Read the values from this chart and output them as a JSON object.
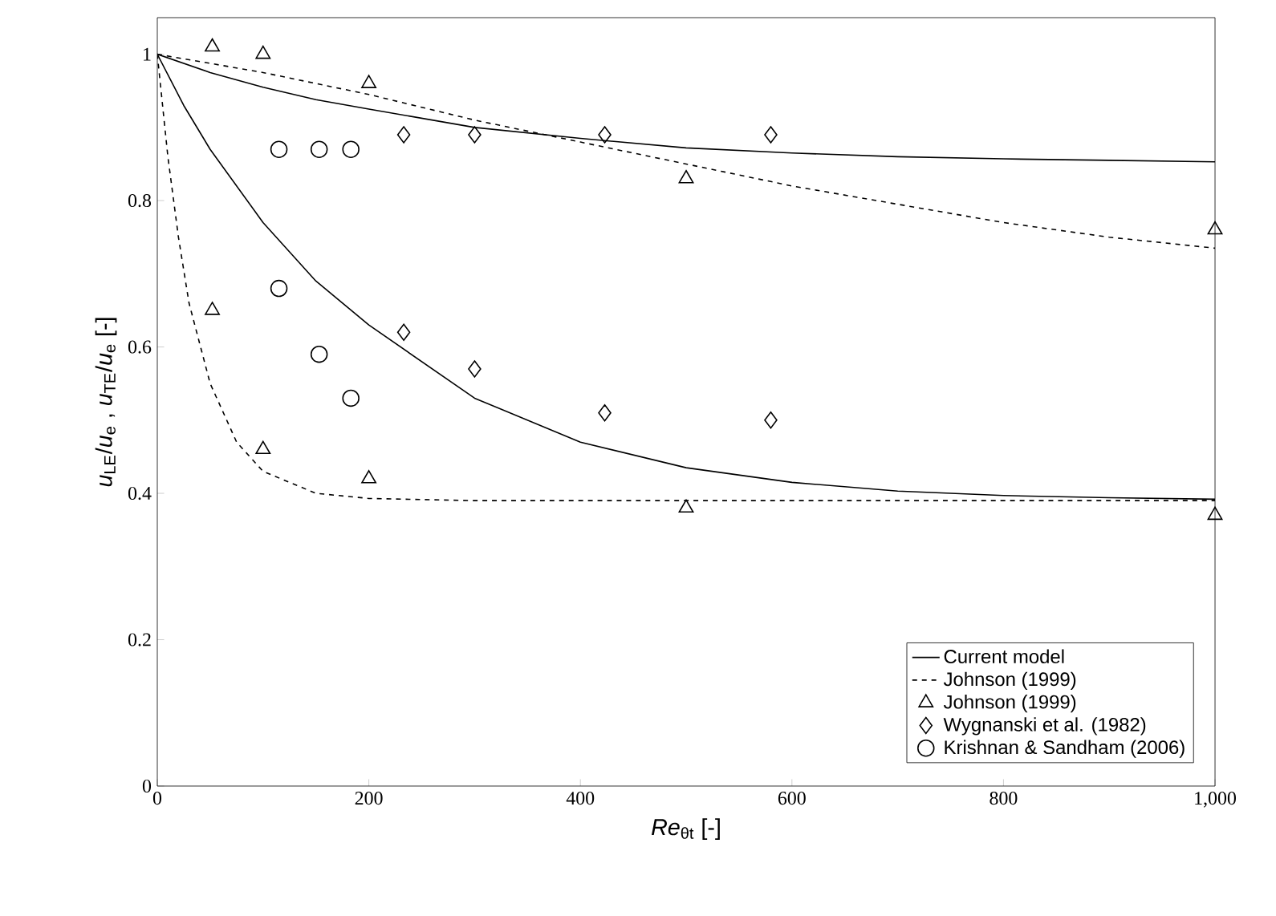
{
  "chart_data": {
    "type": "line",
    "xlabel": "*Re*$_{θt}$ [-]",
    "ylabel": "*u*$_{LE}$/*u*$_{e}$ , *u*$_{TE}$/*u*$_{e}$ [-]",
    "xlim": [
      0,
      1000
    ],
    "ylim": [
      0,
      1.05
    ],
    "xticks": [
      0,
      200,
      400,
      600,
      800,
      {
        "value": 1000,
        "label": "1,000"
      }
    ],
    "yticks": [
      0,
      0.2,
      0.4,
      0.6,
      0.8,
      1
    ],
    "legend": "bottom right",
    "series": [
      {
        "name": "Current model",
        "color": "#000000",
        "line_style": "solid",
        "marker": "none",
        "x": [
          0,
          50,
          100,
          150,
          200,
          300,
          400,
          500,
          600,
          700,
          800,
          900,
          1000
        ],
        "values": [
          1,
          0.975,
          0.955,
          0.938,
          0.925,
          0.9,
          0.885,
          0.872,
          0.865,
          0.86,
          0.857,
          0.855,
          0.853
        ]
      },
      {
        "color": "#000000",
        "line_style": "solid",
        "marker": "none",
        "x": [
          0,
          25,
          50,
          100,
          150,
          200,
          300,
          400,
          500,
          600,
          700,
          800,
          900,
          1000
        ],
        "values": [
          1,
          0.93,
          0.87,
          0.77,
          0.69,
          0.63,
          0.53,
          0.47,
          0.435,
          0.415,
          0.403,
          0.397,
          0.394,
          0.392
        ]
      },
      {
        "name": "Johnson (1999)",
        "color": "#000000",
        "line_style": "dashed",
        "marker": "none",
        "x": [
          0,
          100,
          200,
          300,
          400,
          500,
          600,
          700,
          800,
          900,
          1000
        ],
        "values": [
          1,
          0.975,
          0.945,
          0.91,
          0.88,
          0.85,
          0.82,
          0.795,
          0.77,
          0.75,
          0.735
        ]
      },
      {
        "color": "#000000",
        "line_style": "dashed",
        "marker": "none",
        "x": [
          0,
          10,
          20,
          30,
          50,
          75,
          100,
          150,
          200,
          300,
          1000
        ],
        "values": [
          1,
          0.86,
          0.75,
          0.66,
          0.55,
          0.47,
          0.43,
          0.4,
          0.393,
          0.39,
          0.39
        ]
      },
      {
        "name": "Johnson (1999)",
        "type": "scatter",
        "color": "#000000",
        "marker": "triangle",
        "x": [
          52,
          100,
          200,
          500,
          1000,
          52,
          100,
          200,
          500,
          1000
        ],
        "values": [
          1.01,
          1.0,
          0.96,
          0.83,
          0.76,
          0.65,
          0.46,
          0.42,
          0.38,
          0.37
        ]
      },
      {
        "name": "Wygnanski et al. (1982)",
        "type": "scatter",
        "color": "#000000",
        "marker": "diamond",
        "x": [
          233,
          300,
          423,
          580,
          233,
          300,
          423,
          580
        ],
        "values": [
          0.89,
          0.89,
          0.89,
          0.89,
          0.62,
          0.57,
          0.51,
          0.5
        ]
      },
      {
        "name": "Krishnan & Sandham (2006)",
        "type": "scatter",
        "color": "#000000",
        "marker": "circle",
        "x": [
          115,
          153,
          183,
          115,
          153,
          183
        ],
        "values": [
          0.87,
          0.87,
          0.87,
          0.68,
          0.59,
          0.53
        ]
      }
    ]
  }
}
